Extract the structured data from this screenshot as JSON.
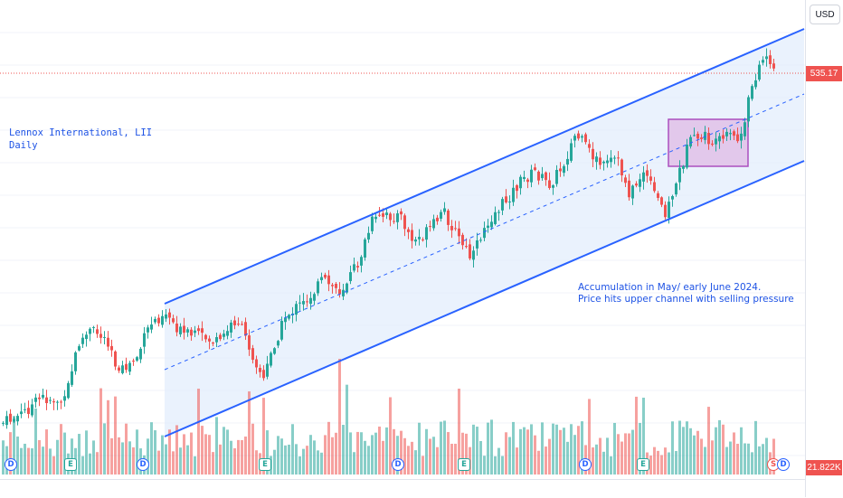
{
  "header": {
    "currency": "USD"
  },
  "legend": {
    "symbol": "Lennox International, LII",
    "interval": "Daily"
  },
  "annotation": {
    "line1": "Accumulation in May/ early June 2024.",
    "line2": "Price hits upper channel with selling pressure"
  },
  "price_axis": {
    "last_price": "535.17",
    "last_volume": "21.822K"
  },
  "colors": {
    "up": "#26a69a",
    "down": "#ef5350",
    "channel": "#2962ff",
    "channel_fill": "#e3eefc",
    "box_fill": "#e1bee7",
    "box_border": "#9c27b0",
    "price_line": "#ef5350"
  },
  "events": [
    {
      "type": "D",
      "label": "D"
    },
    {
      "type": "E",
      "label": "E"
    },
    {
      "type": "D",
      "label": "D"
    },
    {
      "type": "E",
      "label": "E"
    },
    {
      "type": "D",
      "label": "D"
    },
    {
      "type": "E",
      "label": "E"
    },
    {
      "type": "D",
      "label": "D"
    },
    {
      "type": "E",
      "label": "E"
    },
    {
      "type": "S",
      "label": "S"
    },
    {
      "type": "D",
      "label": "D"
    }
  ],
  "chart_data": {
    "type": "candlestick",
    "series_count": 2,
    "price_seed_closes": [
      392,
      395,
      393,
      398,
      402,
      400,
      405,
      410,
      408,
      415,
      420,
      418,
      425,
      430,
      428,
      440,
      455,
      460,
      458,
      462,
      465,
      463,
      460,
      455,
      448,
      440,
      445,
      450,
      455,
      460,
      470,
      478,
      482,
      480,
      478,
      475,
      472,
      470,
      468,
      474,
      470,
      466,
      462,
      458,
      455,
      452,
      450,
      448,
      445,
      440,
      445,
      452,
      458,
      462,
      468,
      472,
      475,
      478,
      482,
      480,
      478,
      475,
      476,
      474,
      472,
      478,
      482,
      486,
      490,
      494,
      498,
      502,
      506,
      510,
      508,
      512,
      515,
      518,
      520,
      522,
      525,
      522,
      520,
      518,
      515,
      512,
      510,
      508,
      506,
      504,
      502,
      500,
      503,
      506,
      510,
      514,
      518,
      522,
      526,
      530,
      534,
      538,
      542,
      546,
      550,
      552,
      550,
      548,
      546,
      544,
      542,
      540,
      538,
      536,
      535
    ],
    "range_note": "price data in USD",
    "last_price": 535.17
  }
}
